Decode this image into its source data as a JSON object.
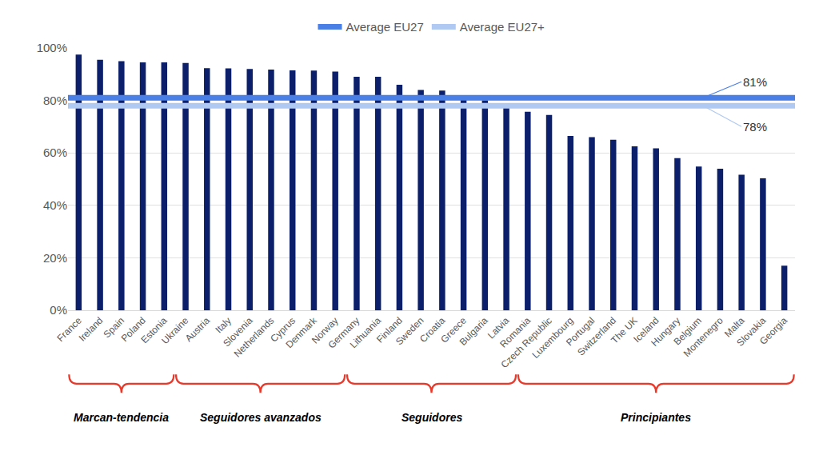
{
  "chart_data": {
    "type": "bar",
    "categories": [
      "France",
      "Ireland",
      "Spain",
      "Poland",
      "Estonia",
      "Ukraine",
      "Austria",
      "Italy",
      "Slovenia",
      "Netherlands",
      "Cyprus",
      "Denmark",
      "Norway",
      "Germany",
      "Lithuania",
      "Finland",
      "Sweden",
      "Croatia",
      "Greece",
      "Bulgaria",
      "Latvia",
      "Romania",
      "Czech Republic",
      "Luxembourg",
      "Portugal",
      "Switzerland",
      "The UK",
      "Iceland",
      "Hungary",
      "Belgium",
      "Montenegro",
      "Malta",
      "Slovakia",
      "Georgia"
    ],
    "values": [
      97.5,
      95.5,
      95,
      94.5,
      94.5,
      94.3,
      92.3,
      92.2,
      92,
      91.8,
      91.5,
      91.4,
      91,
      89,
      89,
      86,
      84,
      83.8,
      82,
      80,
      79,
      75.7,
      74.5,
      66.5,
      66,
      65,
      62.5,
      61.7,
      58,
      54.8,
      54,
      51.7,
      50.3,
      17
    ],
    "color": "#0b1f6b",
    "ylim": [
      0,
      100
    ],
    "yticks": [
      {
        "value": 0,
        "label": "0%"
      },
      {
        "value": 20,
        "label": "20%"
      },
      {
        "value": 40,
        "label": "40%"
      },
      {
        "value": 60,
        "label": "60%"
      },
      {
        "value": 80,
        "label": "80%"
      },
      {
        "value": 100,
        "label": "100%"
      }
    ],
    "grid": true,
    "legend": "top",
    "reference_lines": [
      {
        "name": "Average EU27",
        "value": 81,
        "value_label": "81%",
        "color": "#4a7fe6"
      },
      {
        "name": "Average EU27+",
        "value": 78,
        "value_label": "78%",
        "color": "#b0c9f2"
      }
    ],
    "groups": [
      {
        "label": "Marcan-tendencia",
        "from": "France",
        "to": "Estonia"
      },
      {
        "label": "Seguidores avanzados",
        "from": "Ukraine",
        "to": "Norway"
      },
      {
        "label": "Seguidores",
        "from": "Germany",
        "to": "Latvia"
      },
      {
        "label": "Principiantes",
        "from": "Romania",
        "to": "Georgia"
      }
    ]
  }
}
